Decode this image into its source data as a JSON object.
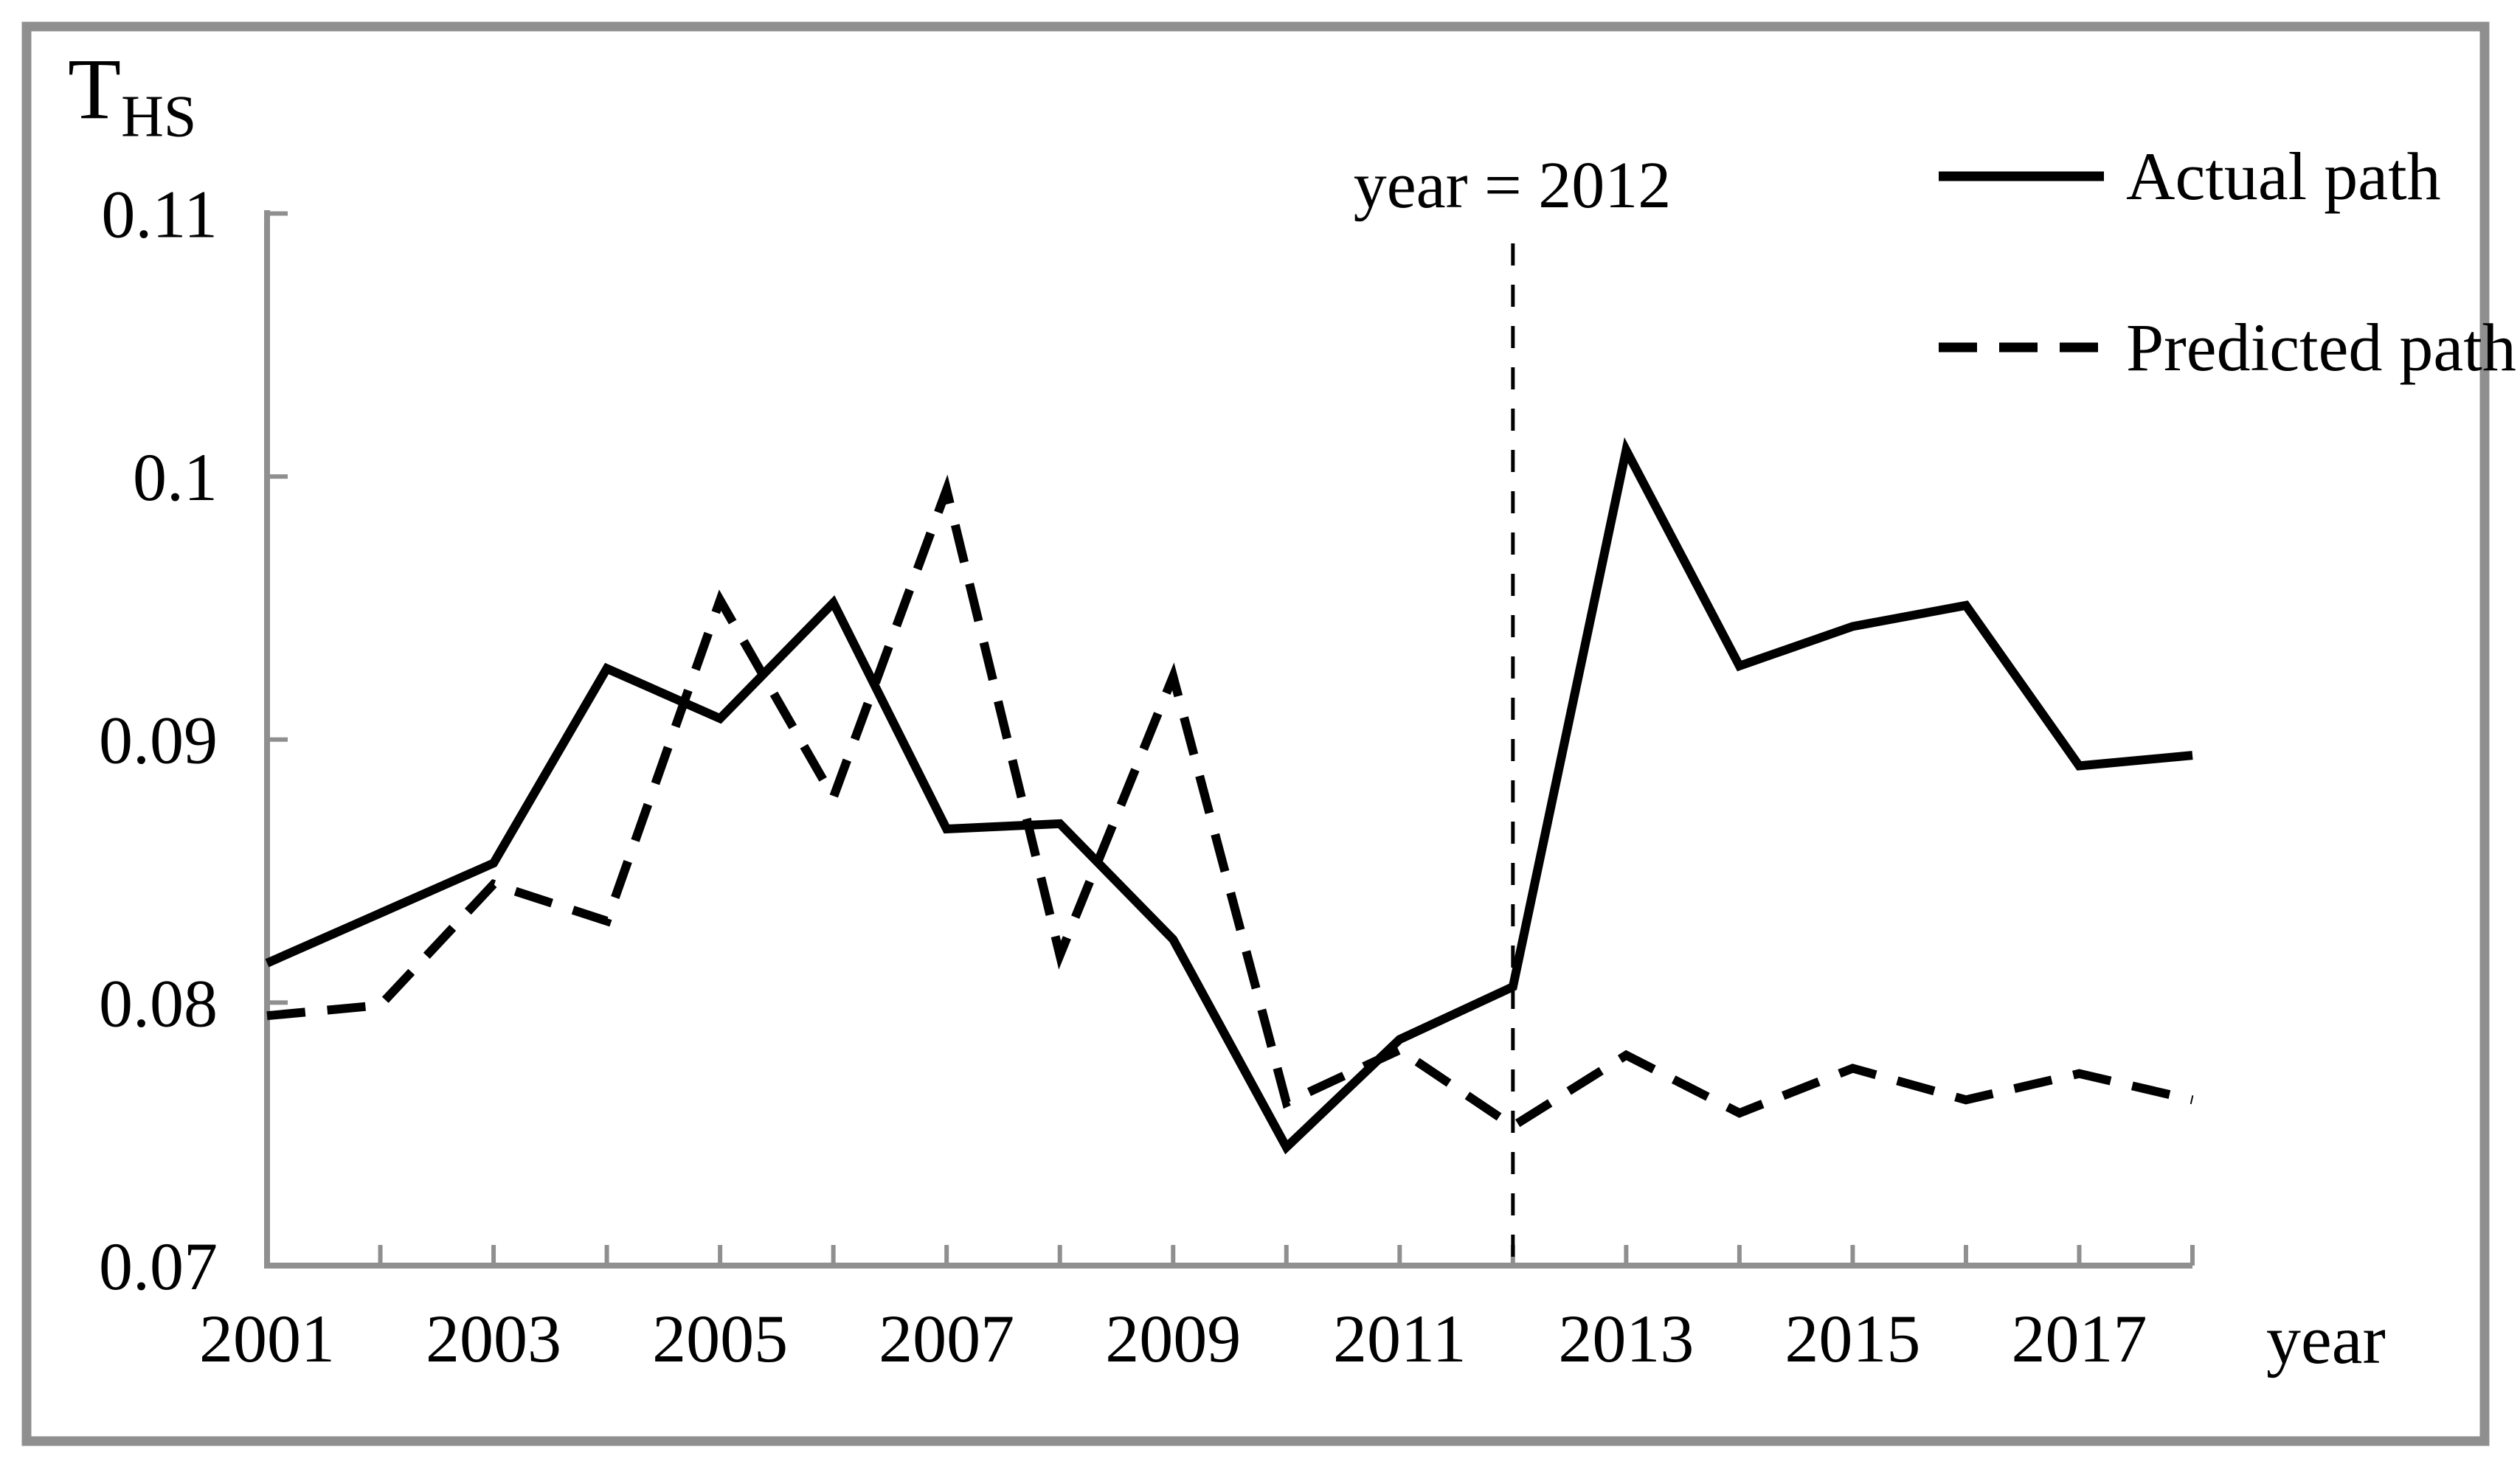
{
  "figure": {
    "background": "#ffffff",
    "border_color": "#8f8f8f"
  },
  "chart_data": {
    "type": "line",
    "title": "",
    "ylabel_main": "T",
    "ylabel_sub": "HS",
    "xlabel": "year",
    "annotation": "year = 2012",
    "reference_year": 2012,
    "ylim": [
      0.07,
      0.11
    ],
    "yticks": [
      0.07,
      0.08,
      0.09,
      0.1,
      0.11
    ],
    "ytick_labels": [
      "0.07",
      "0.08",
      "0.09",
      "0.1",
      "0.11"
    ],
    "xtick_label_years": [
      2001,
      2003,
      2005,
      2007,
      2009,
      2011,
      2013,
      2015,
      2017
    ],
    "x": [
      2001,
      2002,
      2003,
      2004,
      2005,
      2006,
      2007,
      2008,
      2009,
      2010,
      2011,
      2012,
      2013,
      2014,
      2015,
      2016,
      2017,
      2018
    ],
    "series": [
      {
        "name": "Actual path",
        "style": "solid",
        "color": "#000000",
        "values": [
          0.0815,
          0.0834,
          0.0853,
          0.0927,
          0.0908,
          0.0952,
          0.0866,
          0.0868,
          0.0824,
          0.0745,
          0.0786,
          0.0806,
          0.101,
          0.0928,
          0.0943,
          0.0951,
          0.089,
          0.0894
        ]
      },
      {
        "name": "Predicted path",
        "style": "dashed",
        "color": "#000000",
        "values": [
          0.0795,
          0.0799,
          0.0845,
          0.0831,
          0.0953,
          0.0878,
          0.0995,
          0.0818,
          0.0924,
          0.0762,
          0.0782,
          0.0753,
          0.078,
          0.0758,
          0.0775,
          0.0763,
          0.0773,
          0.0763
        ]
      }
    ],
    "grid": false,
    "legend_position": "top-right",
    "axis_color": "#8f8f8f",
    "text_color": "#000000"
  }
}
